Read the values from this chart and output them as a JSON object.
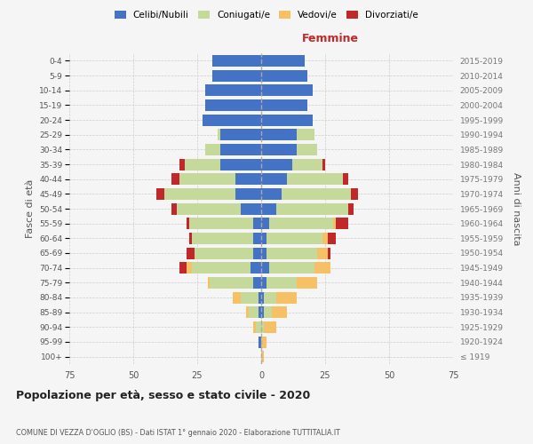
{
  "age_groups": [
    "100+",
    "95-99",
    "90-94",
    "85-89",
    "80-84",
    "75-79",
    "70-74",
    "65-69",
    "60-64",
    "55-59",
    "50-54",
    "45-49",
    "40-44",
    "35-39",
    "30-34",
    "25-29",
    "20-24",
    "15-19",
    "10-14",
    "5-9",
    "0-4"
  ],
  "birth_years": [
    "≤ 1919",
    "1920-1924",
    "1925-1929",
    "1930-1934",
    "1935-1939",
    "1940-1944",
    "1945-1949",
    "1950-1954",
    "1955-1959",
    "1960-1964",
    "1965-1969",
    "1970-1974",
    "1975-1979",
    "1980-1984",
    "1985-1989",
    "1990-1994",
    "1995-1999",
    "2000-2004",
    "2005-2009",
    "2010-2014",
    "2015-2019"
  ],
  "males": {
    "celibi": [
      0,
      1,
      0,
      1,
      1,
      3,
      4,
      3,
      3,
      3,
      8,
      10,
      10,
      16,
      16,
      16,
      23,
      22,
      22,
      19,
      19
    ],
    "coniugati": [
      0,
      0,
      2,
      4,
      7,
      17,
      23,
      23,
      24,
      25,
      25,
      28,
      22,
      14,
      6,
      1,
      0,
      0,
      0,
      0,
      0
    ],
    "vedovi": [
      0,
      0,
      1,
      1,
      3,
      1,
      2,
      0,
      0,
      0,
      0,
      0,
      0,
      0,
      0,
      0,
      0,
      0,
      0,
      0,
      0
    ],
    "divorziati": [
      0,
      0,
      0,
      0,
      0,
      0,
      3,
      3,
      1,
      1,
      2,
      3,
      3,
      2,
      0,
      0,
      0,
      0,
      0,
      0,
      0
    ]
  },
  "females": {
    "nubili": [
      0,
      0,
      0,
      1,
      1,
      2,
      3,
      2,
      2,
      3,
      6,
      8,
      10,
      12,
      14,
      14,
      20,
      18,
      20,
      18,
      17
    ],
    "coniugate": [
      0,
      0,
      1,
      3,
      5,
      12,
      18,
      20,
      22,
      25,
      28,
      27,
      22,
      12,
      8,
      7,
      0,
      0,
      0,
      0,
      0
    ],
    "vedove": [
      1,
      2,
      5,
      6,
      8,
      8,
      6,
      4,
      2,
      1,
      0,
      0,
      0,
      0,
      0,
      0,
      0,
      0,
      0,
      0,
      0
    ],
    "divorziate": [
      0,
      0,
      0,
      0,
      0,
      0,
      0,
      1,
      3,
      5,
      2,
      3,
      2,
      1,
      0,
      0,
      0,
      0,
      0,
      0,
      0
    ]
  },
  "colors": {
    "celibi_nubili": "#4472C4",
    "coniugati": "#C5D99A",
    "vedovi": "#F5C066",
    "divorziati": "#C0282A"
  },
  "xlim": 75,
  "title": "Popolazione per età, sesso e stato civile - 2020",
  "subtitle": "COMUNE DI VEZZA D'OGLIO (BS) - Dati ISTAT 1° gennaio 2020 - Elaborazione TUTTITALIA.IT",
  "ylabel_left": "Fasce di età",
  "ylabel_right": "Anni di nascita",
  "xlabel_right": "Femmine",
  "background_color": "#f5f5f5",
  "grid_color": "#cccccc"
}
